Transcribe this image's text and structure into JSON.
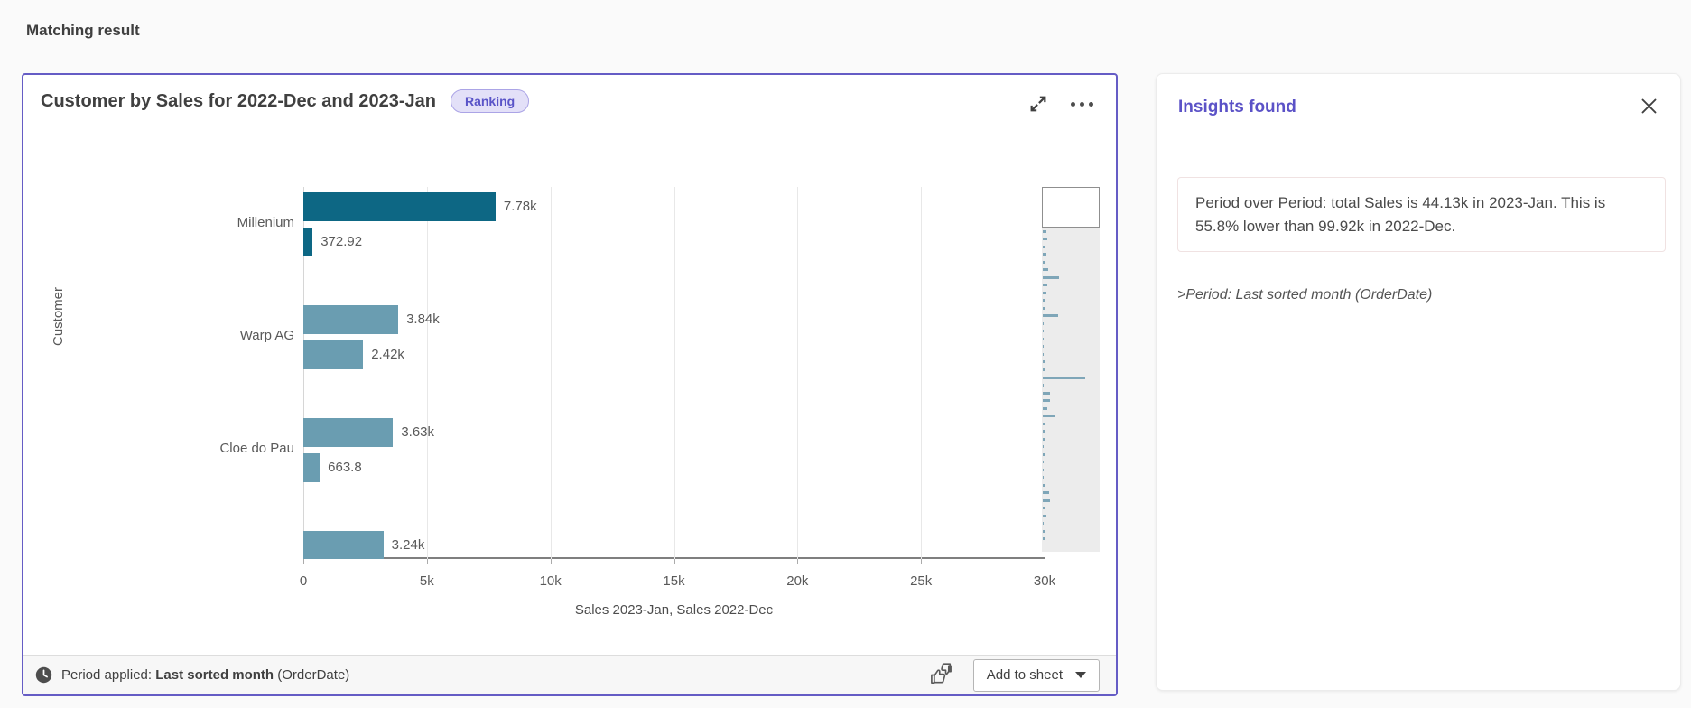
{
  "page": {
    "title": "Matching result"
  },
  "theme": {
    "accent": "#655cc5",
    "panel_title_color": "#5b52c7",
    "bar_dark": "#0d6784",
    "bar_light": "#6a9db1",
    "badge_bg": "#e3e0f8",
    "badge_text": "#5a54c8"
  },
  "chart_card": {
    "title": "Customer by Sales for 2022-Dec and 2023-Jan",
    "badge": "Ranking",
    "footer": {
      "period_label": "Period applied:",
      "period_value": "Last sorted month",
      "period_field": "(OrderDate)",
      "add_to_sheet_label": "Add to sheet"
    }
  },
  "chart_data": {
    "type": "bar",
    "orientation": "horizontal",
    "title": "Customer by Sales for 2022-Dec and 2023-Jan",
    "xlabel": "Sales 2023-Jan, Sales 2022-Dec",
    "ylabel": "Customer",
    "xlim": [
      0,
      30000
    ],
    "grid": true,
    "x_ticks": [
      {
        "v": 0,
        "label": "0"
      },
      {
        "v": 5000,
        "label": "5k"
      },
      {
        "v": 10000,
        "label": "10k"
      },
      {
        "v": 15000,
        "label": "15k"
      },
      {
        "v": 20000,
        "label": "20k"
      },
      {
        "v": 25000,
        "label": "25k"
      },
      {
        "v": 30000,
        "label": "30k"
      }
    ],
    "series_names": [
      "Sales 2023-Jan",
      "Sales 2022-Dec"
    ],
    "groups": [
      {
        "category": "Millenium",
        "color": "#0d6784",
        "bars": [
          {
            "value": 7780,
            "label": "7.78k"
          },
          {
            "value": 372.92,
            "label": "372.92"
          }
        ]
      },
      {
        "category": "Warp AG",
        "color": "#6a9db1",
        "bars": [
          {
            "value": 3840,
            "label": "3.84k"
          },
          {
            "value": 2420,
            "label": "2.42k"
          }
        ]
      },
      {
        "category": "Cloe do Pau",
        "color": "#6a9db1",
        "bars": [
          {
            "value": 3630,
            "label": "3.63k"
          },
          {
            "value": 663.8,
            "label": "663.8"
          }
        ]
      },
      {
        "category": "",
        "color": "#6a9db1",
        "partial": true,
        "bars": [
          {
            "value": 3240,
            "label": "3.24k"
          }
        ]
      }
    ],
    "navigator": {
      "viewport_fraction": 0.11,
      "bars": [
        [
          37,
          1
        ],
        [
          10,
          1
        ],
        [
          13,
          1
        ],
        [
          5,
          1
        ],
        [
          9,
          0
        ],
        [
          6,
          0
        ],
        [
          8,
          0
        ],
        [
          5,
          0
        ],
        [
          6,
          0
        ],
        [
          4,
          0
        ],
        [
          10,
          0
        ],
        [
          30,
          0
        ],
        [
          8,
          0
        ],
        [
          6,
          0
        ],
        [
          5,
          0
        ],
        [
          4,
          0
        ],
        [
          28,
          0
        ],
        [
          2,
          0
        ],
        [
          2,
          0
        ],
        [
          2,
          0
        ],
        [
          2,
          0
        ],
        [
          2,
          0
        ],
        [
          3,
          0
        ],
        [
          3,
          0
        ],
        [
          78,
          0
        ],
        [
          2,
          0
        ],
        [
          13,
          0
        ],
        [
          13,
          0
        ],
        [
          9,
          0
        ],
        [
          22,
          0
        ],
        [
          3,
          0
        ],
        [
          3,
          0
        ],
        [
          3,
          0
        ],
        [
          2,
          0
        ],
        [
          3,
          0
        ],
        [
          2,
          0
        ],
        [
          2,
          0
        ],
        [
          2,
          0
        ],
        [
          3,
          0
        ],
        [
          11,
          0
        ],
        [
          14,
          0
        ],
        [
          3,
          0
        ],
        [
          6,
          0
        ],
        [
          2,
          0
        ],
        [
          4,
          0
        ],
        [
          3,
          0
        ]
      ]
    }
  },
  "insights_panel": {
    "title": "Insights found",
    "insight_text": "Period over Period: total Sales is 44.13k in 2023-Jan. This is 55.8% lower than 99.92k in 2022-Dec.",
    "period_note": ">Period: Last sorted month (OrderDate)"
  }
}
